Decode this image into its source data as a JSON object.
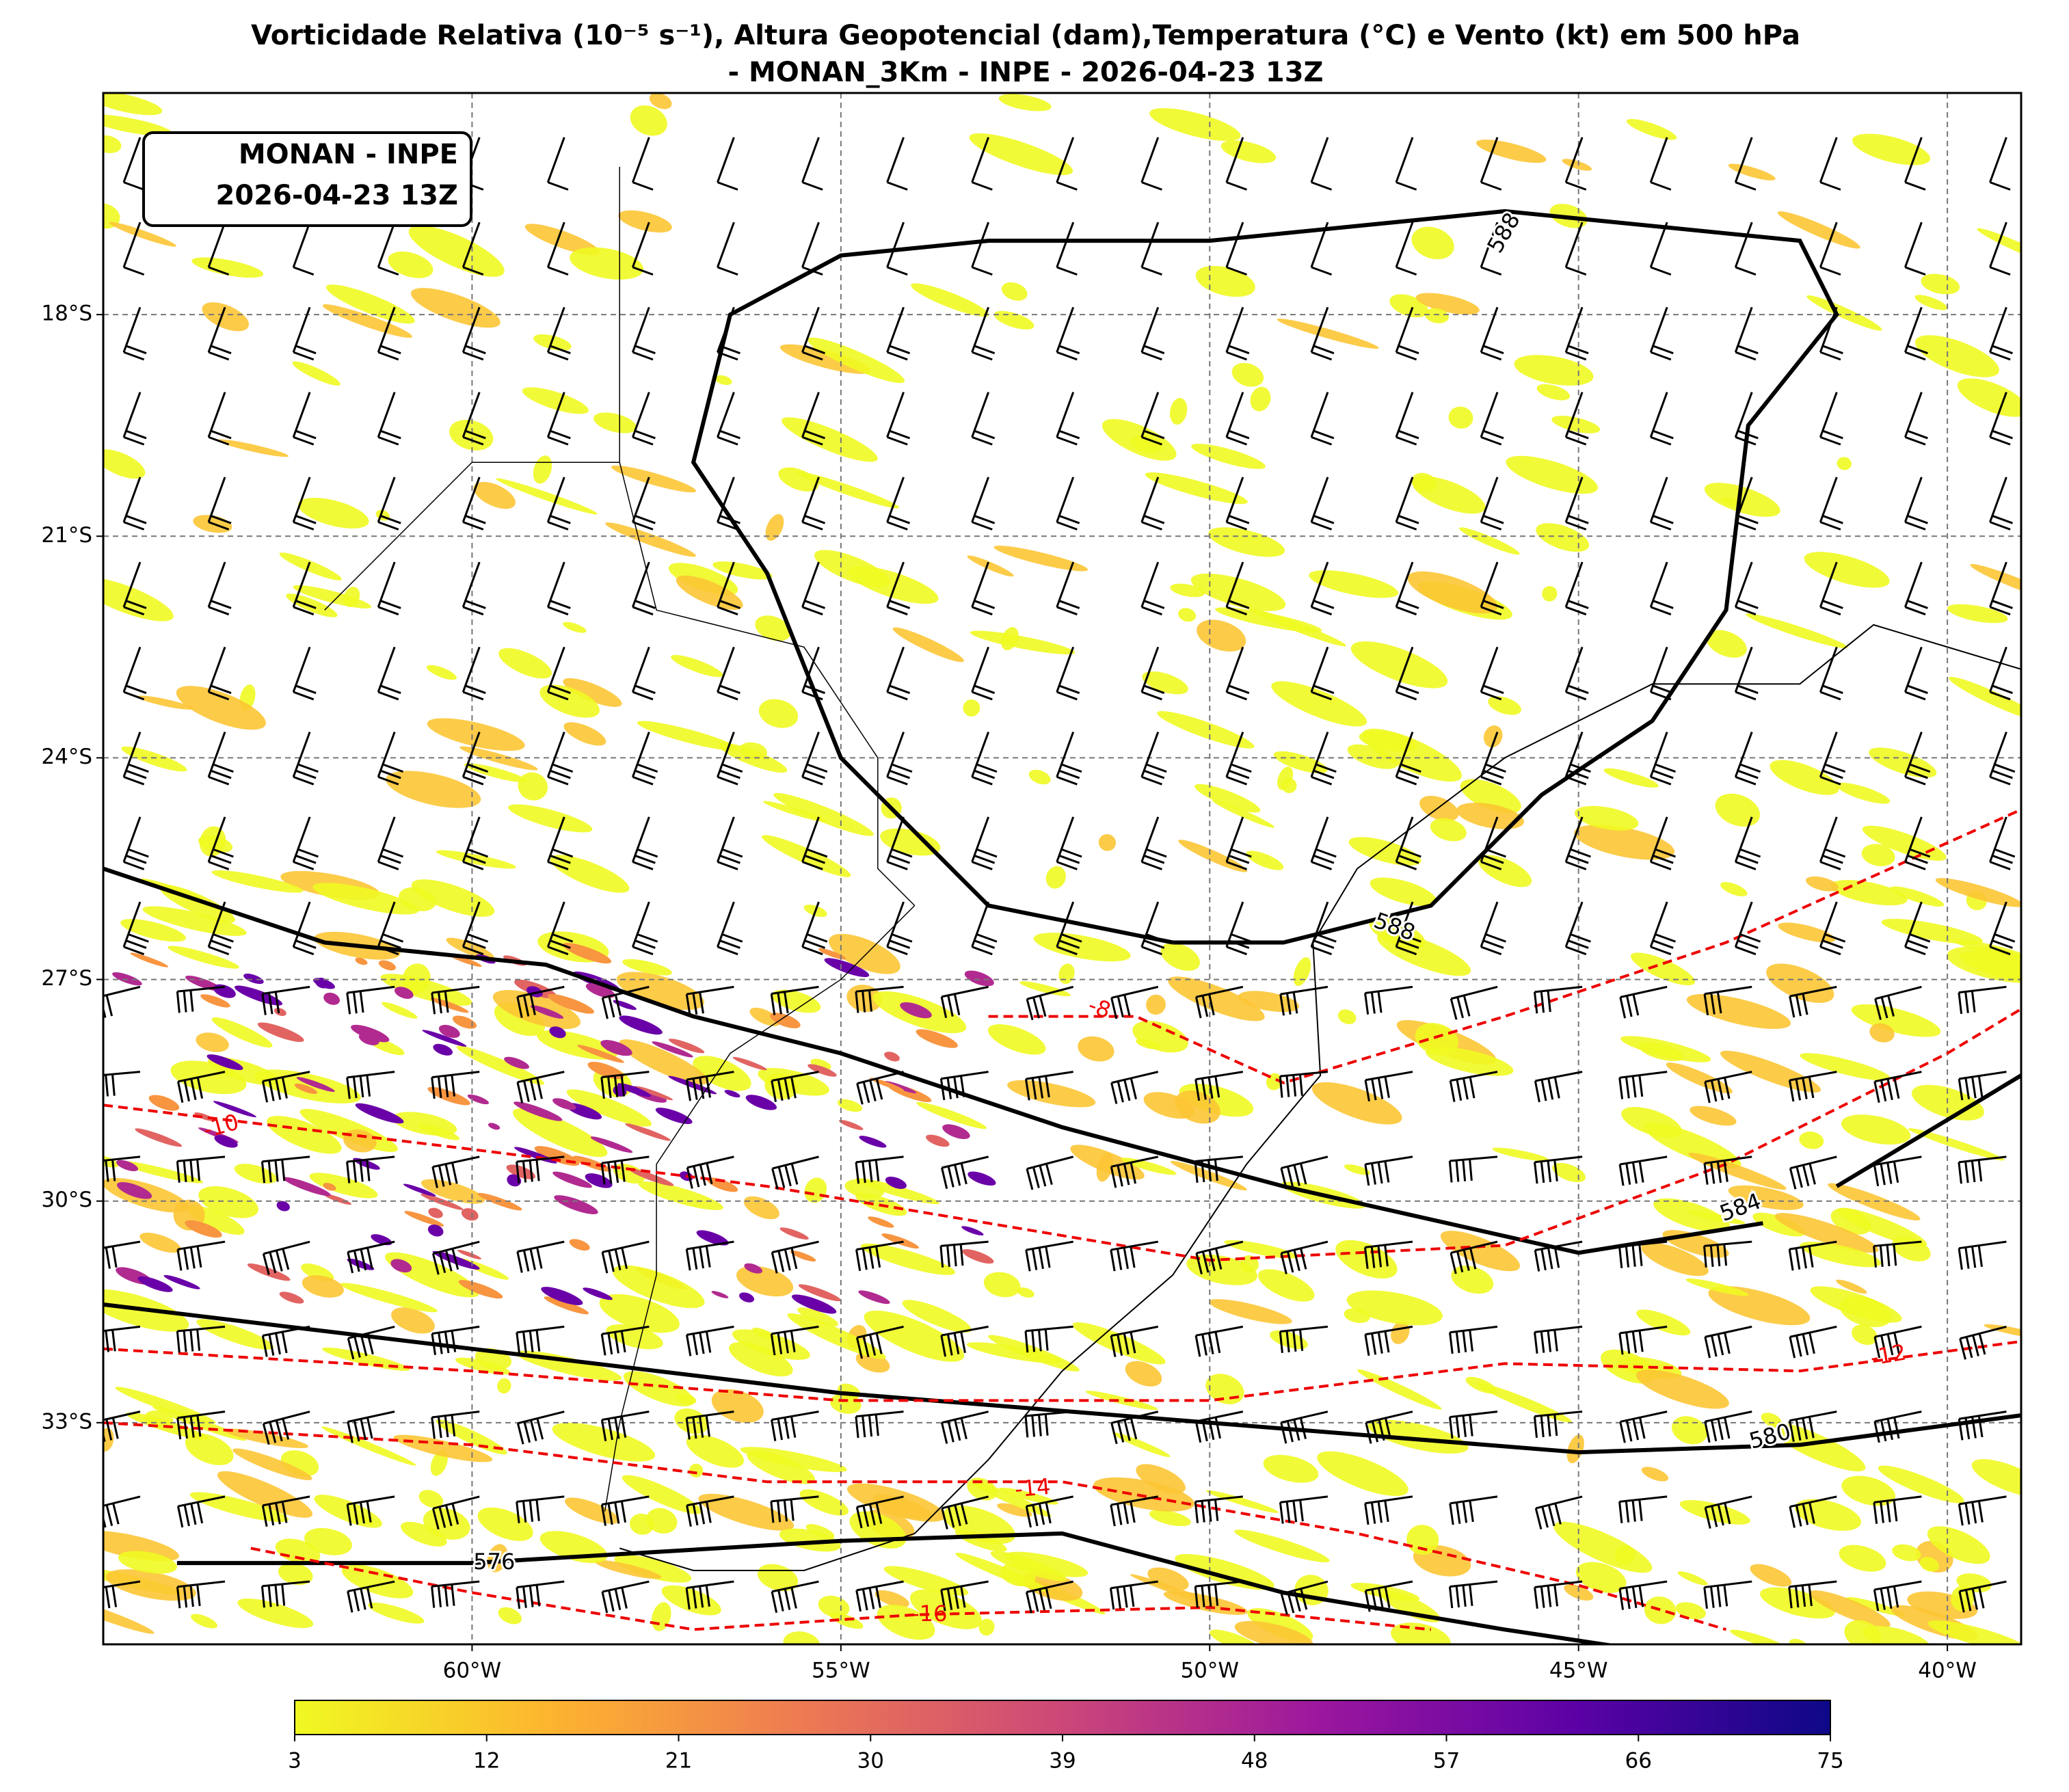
{
  "title": [
    "Vorticidade Relativa (10⁻⁵ s⁻¹), Altura Geopotencial (dam),Temperatura (°C) e Vento (kt) em 500 hPa",
    "- MONAN_3Km - INPE - 2026-04-23 13Z"
  ],
  "info_box": [
    "MONAN - INPE",
    "2026-04-23 13Z"
  ],
  "map": {
    "xlim": [
      -65,
      -39
    ],
    "ylim": [
      -36,
      -15
    ],
    "xticks": [
      {
        "value": -60,
        "label": "60°W"
      },
      {
        "value": -55,
        "label": "55°W"
      },
      {
        "value": -50,
        "label": "50°W"
      },
      {
        "value": -45,
        "label": "45°W"
      },
      {
        "value": -40,
        "label": "40°W"
      }
    ],
    "yticks": [
      {
        "value": -18,
        "label": "18°S"
      },
      {
        "value": -21,
        "label": "21°S"
      },
      {
        "value": -24,
        "label": "24°S"
      },
      {
        "value": -27,
        "label": "27°S"
      },
      {
        "value": -30,
        "label": "30°S"
      },
      {
        "value": -33,
        "label": "33°S"
      }
    ],
    "grid": true,
    "height_contour_labels": [
      588,
      588,
      584,
      580,
      576
    ],
    "temperature_contour_labels": [
      -8,
      -10,
      -12,
      -14,
      -16
    ]
  },
  "colorbar": {
    "lim": [
      3,
      75
    ],
    "ticks": [
      3,
      12,
      21,
      30,
      39,
      48,
      57,
      66,
      75
    ],
    "colormap": [
      "#f0f921",
      "#fdb42f",
      "#ed7953",
      "#cc4778",
      "#9c179e",
      "#5c01a6",
      "#0d0887"
    ]
  }
}
